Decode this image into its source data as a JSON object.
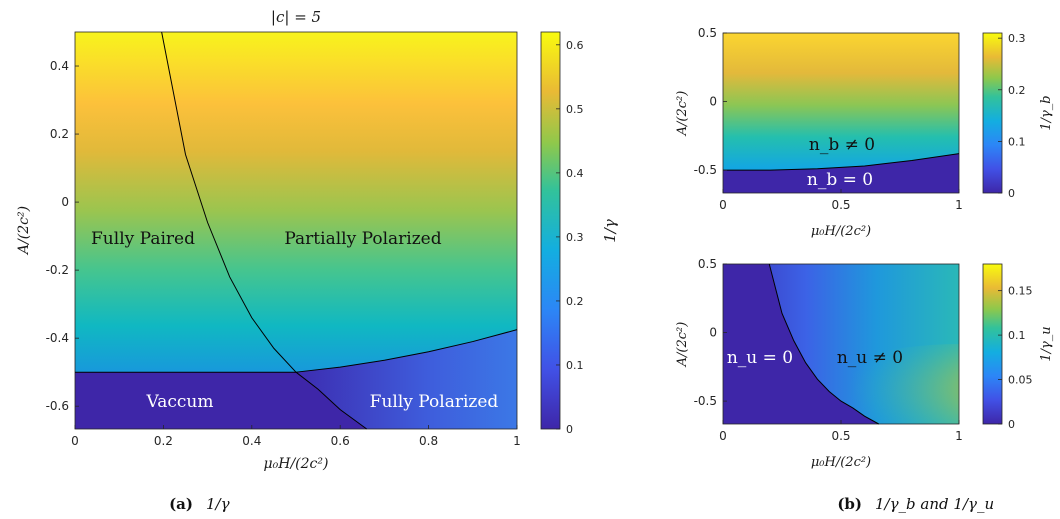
{
  "panel_a": {
    "title": "|c| = 5",
    "xlabel": "μ₀H/(2c²)",
    "ylabel": "A/(2c²)",
    "colorbar_label": "1/γ",
    "regions": {
      "fully_paired": "Fully Paired",
      "partially_polarized": "Partially Polarized",
      "vacuum": "Vaccum",
      "fully_polarized": "Fully Polarized"
    },
    "caption_tag": "(a)",
    "caption_text": "1/γ"
  },
  "panel_b_top": {
    "xlabel": "μ₀H/(2c²)",
    "ylabel": "A/(2c²)",
    "colorbar_label": "1/γ_b",
    "regions": {
      "nonzero": "n_b ≠ 0",
      "zero": "n_b = 0"
    }
  },
  "panel_b_bottom": {
    "xlabel": "μ₀H/(2c²)",
    "ylabel": "A/(2c²)",
    "colorbar_label": "1/γ_u",
    "regions": {
      "zero": "n_u = 0",
      "nonzero": "n_u ≠ 0"
    }
  },
  "caption_b": {
    "tag": "(b)",
    "text": "1/γ_b and 1/γ_u"
  },
  "colors": {
    "parula_low": "#3e26a8",
    "parula_mid": "#13beb8",
    "parula_high": "#f9fb0e",
    "boundary": "#000000"
  },
  "chart_data": [
    {
      "type": "heatmap",
      "title": "|c| = 5",
      "xlabel": "μ₀H/(2c²)",
      "ylabel": "A/(2c²)",
      "xlim": [
        0,
        1
      ],
      "ylim": [
        -0.667,
        0.5
      ],
      "x_ticks": [
        0,
        0.2,
        0.4,
        0.6,
        0.8,
        1
      ],
      "y_ticks": [
        -0.6,
        -0.4,
        -0.2,
        0,
        0.2,
        0.4
      ],
      "colorbar": {
        "label": "1/γ",
        "range": [
          0,
          0.62
        ],
        "ticks": [
          0,
          0.1,
          0.2,
          0.3,
          0.4,
          0.5,
          0.6
        ]
      },
      "boundaries": [
        {
          "name": "paired-partial",
          "x": [
            0.196,
            0.25,
            0.3,
            0.35,
            0.4,
            0.45,
            0.5
          ],
          "y": [
            0.5,
            0.14,
            -0.06,
            -0.22,
            -0.34,
            -0.43,
            -0.5
          ]
        },
        {
          "name": "vacuum-fullypolarized",
          "x": [
            0.5,
            0.55,
            0.6,
            0.66
          ],
          "y": [
            -0.5,
            -0.55,
            -0.61,
            -0.667
          ]
        },
        {
          "name": "vacuum-top",
          "x": [
            0,
            0.5
          ],
          "y": [
            -0.5,
            -0.5
          ]
        },
        {
          "name": "partial-fullypolarized",
          "x": [
            0.5,
            0.6,
            0.7,
            0.8,
            0.9,
            1.0
          ],
          "y": [
            -0.5,
            -0.485,
            -0.465,
            -0.44,
            -0.41,
            -0.375
          ]
        }
      ],
      "region_labels": [
        "Fully Paired",
        "Partially Polarized",
        "Vaccum",
        "Fully Polarized"
      ]
    },
    {
      "type": "heatmap",
      "xlabel": "μ₀H/(2c²)",
      "ylabel": "A/(2c²)",
      "xlim": [
        0,
        1
      ],
      "ylim": [
        -0.667,
        0.5
      ],
      "x_ticks": [
        0,
        0.5,
        1
      ],
      "y_ticks": [
        -0.5,
        0,
        0.5
      ],
      "colorbar": {
        "label": "1/γ_b",
        "range": [
          0,
          0.31
        ],
        "ticks": [
          0,
          0.1,
          0.2,
          0.3
        ]
      },
      "boundaries": [
        {
          "name": "nb-zero",
          "x": [
            0,
            0.2,
            0.4,
            0.6,
            0.8,
            1.0
          ],
          "y": [
            -0.5,
            -0.5,
            -0.49,
            -0.47,
            -0.43,
            -0.38
          ]
        }
      ],
      "region_labels": [
        "n_b ≠ 0",
        "n_b = 0"
      ]
    },
    {
      "type": "heatmap",
      "xlabel": "μ₀H/(2c²)",
      "ylabel": "A/(2c²)",
      "xlim": [
        0,
        1
      ],
      "ylim": [
        -0.667,
        0.5
      ],
      "x_ticks": [
        0,
        0.5,
        1
      ],
      "y_ticks": [
        -0.5,
        0,
        0.5
      ],
      "colorbar": {
        "label": "1/γ_u",
        "range": [
          0,
          0.18
        ],
        "ticks": [
          0,
          0.05,
          0.1,
          0.15
        ]
      },
      "boundaries": [
        {
          "name": "nu-zero",
          "x": [
            0.196,
            0.25,
            0.3,
            0.35,
            0.4,
            0.45,
            0.5,
            0.55,
            0.6,
            0.66
          ],
          "y": [
            0.5,
            0.14,
            -0.06,
            -0.22,
            -0.34,
            -0.43,
            -0.5,
            -0.55,
            -0.61,
            -0.667
          ]
        }
      ],
      "region_labels": [
        "n_u = 0",
        "n_u ≠ 0"
      ]
    }
  ]
}
